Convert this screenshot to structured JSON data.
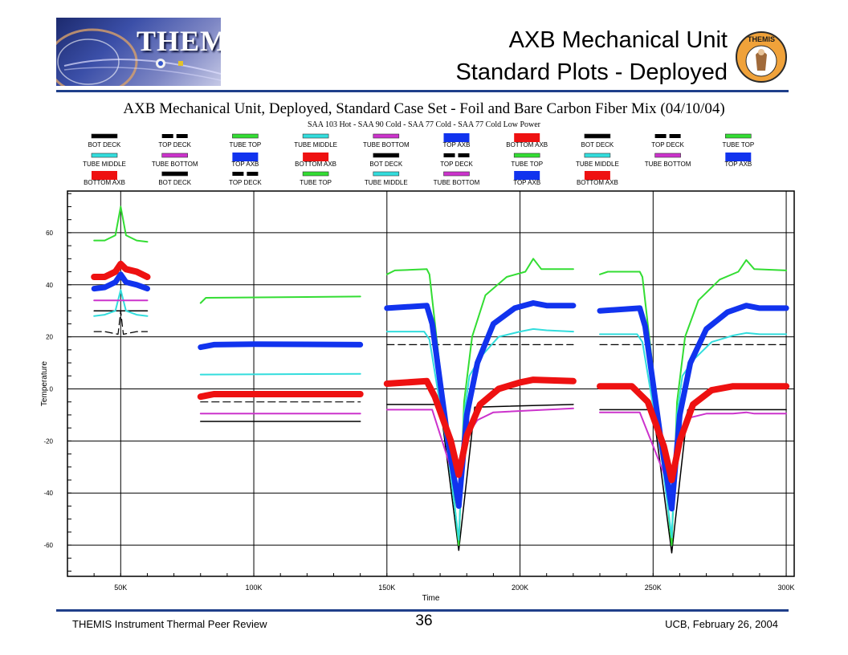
{
  "header": {
    "logo_text": "THEMIS",
    "title_line1": "AXB Mechanical Unit",
    "title_line2": "Standard Plots - Deployed",
    "emblem_text": "THEMIS"
  },
  "footer": {
    "left": "THEMIS Instrument Thermal Peer Review",
    "page": "36",
    "right": "UCB, February 26, 2004"
  },
  "colors": {
    "rule": "#1f3f8a",
    "BOT DECK": "#000000",
    "TOP DECK": "#000000",
    "TUBE TOP": "#33dd33",
    "TUBE MIDDLE": "#33dddd",
    "TUBE BOTTOM": "#cc33cc",
    "TOP AXB": "#1133ee",
    "BOTTOM AXB": "#ee1111"
  },
  "chart_data": {
    "type": "line",
    "title": "AXB Mechanical Unit, Deployed, Standard Case Set - Foil and Bare Carbon Fiber Mix  (04/10/04)",
    "subtitle": "SAA 103 Hot - SAA 90 Cold - SAA 77 Cold - SAA 77 Cold Low Power",
    "xlabel": "Time",
    "ylabel": "Temperature",
    "xlim": [
      30000,
      303000
    ],
    "ylim": [
      -72,
      76
    ],
    "xticks": [
      50000,
      100000,
      150000,
      200000,
      250000,
      300000
    ],
    "xtick_labels": [
      "50K",
      "100K",
      "150K",
      "200K",
      "250K",
      "300K"
    ],
    "yticks": [
      -60,
      -40,
      -20,
      0,
      20,
      40,
      60
    ],
    "ytick_labels": [
      "-60",
      "-40",
      "-20",
      "0",
      "20",
      "40",
      "60"
    ],
    "grid": true,
    "legend_rows": [
      [
        "BOT DECK",
        "TOP DECK",
        "TUBE TOP",
        "TUBE MIDDLE",
        "TUBE BOTTOM",
        "TOP AXB",
        "BOTTOM AXB",
        "BOT DECK",
        "TOP DECK",
        "TUBE TOP"
      ],
      [
        "TUBE MIDDLE",
        "TUBE BOTTOM",
        "TOP AXB",
        "BOTTOM AXB",
        "BOT DECK",
        "TOP DECK",
        "TUBE TOP",
        "TUBE MIDDLE",
        "TUBE BOTTOM",
        "TOP AXB"
      ],
      [
        "BOTTOM AXB",
        "BOT DECK",
        "TOP DECK",
        "TUBE TOP",
        "TUBE MIDDLE",
        "TUBE BOTTOM",
        "TOP AXB",
        "BOTTOM AXB"
      ]
    ],
    "series": [
      {
        "name": "BOT DECK",
        "width": 1.5,
        "dash": false,
        "points": [
          [
            40000,
            30
          ],
          [
            60000,
            30
          ],
          null,
          [
            80000,
            -12.5
          ],
          [
            140000,
            -12.5
          ],
          null,
          [
            150000,
            -6
          ],
          [
            170000,
            -6
          ],
          [
            177000,
            -62
          ],
          [
            183000,
            -7
          ],
          [
            220000,
            -6
          ],
          null,
          [
            230000,
            -8
          ],
          [
            250000,
            -8
          ],
          [
            257000,
            -63
          ],
          [
            263000,
            -8
          ],
          [
            300000,
            -8
          ]
        ]
      },
      {
        "name": "TOP DECK",
        "width": 1.2,
        "dash": true,
        "points": [
          [
            40000,
            22
          ],
          [
            44000,
            22
          ],
          [
            49000,
            21
          ],
          [
            50000,
            30
          ],
          [
            51000,
            21
          ],
          [
            56000,
            22
          ],
          [
            60000,
            22
          ],
          null,
          [
            80000,
            -5
          ],
          [
            140000,
            -5
          ],
          null,
          [
            150000,
            17
          ],
          [
            220000,
            17
          ],
          null,
          [
            230000,
            17
          ],
          [
            300000,
            17
          ]
        ]
      },
      {
        "name": "TUBE TOP",
        "width": 2,
        "dash": false,
        "points": [
          [
            40000,
            57
          ],
          [
            44000,
            57
          ],
          [
            48000,
            59
          ],
          [
            50000,
            70
          ],
          [
            52000,
            59
          ],
          [
            56000,
            57
          ],
          [
            60000,
            56.5
          ],
          null,
          [
            80000,
            33
          ],
          [
            82000,
            35
          ],
          [
            140000,
            35.5
          ],
          null,
          [
            150000,
            44
          ],
          [
            153000,
            45.5
          ],
          [
            165000,
            46
          ],
          [
            166000,
            44
          ],
          [
            173000,
            -20
          ],
          [
            177000,
            -60
          ],
          [
            179000,
            -5
          ],
          [
            182000,
            20
          ],
          [
            187000,
            36
          ],
          [
            195000,
            43
          ],
          [
            202000,
            45
          ],
          [
            205000,
            50
          ],
          [
            208000,
            46
          ],
          [
            220000,
            46
          ],
          null,
          [
            230000,
            44
          ],
          [
            233000,
            45
          ],
          [
            245000,
            45
          ],
          [
            246000,
            43
          ],
          [
            253000,
            -20
          ],
          [
            257000,
            -60
          ],
          [
            259000,
            -5
          ],
          [
            262000,
            20
          ],
          [
            267000,
            34
          ],
          [
            275000,
            42
          ],
          [
            282000,
            45
          ],
          [
            285000,
            49.5
          ],
          [
            288000,
            46
          ],
          [
            300000,
            45.5
          ]
        ]
      },
      {
        "name": "TUBE MIDDLE",
        "width": 2,
        "dash": false,
        "points": [
          [
            40000,
            28
          ],
          [
            44000,
            28.5
          ],
          [
            48000,
            30
          ],
          [
            50000,
            38
          ],
          [
            52000,
            30
          ],
          [
            56000,
            28.5
          ],
          [
            60000,
            28
          ],
          null,
          [
            80000,
            5.5
          ],
          [
            140000,
            5.8
          ],
          null,
          [
            150000,
            22
          ],
          [
            164000,
            22
          ],
          [
            166000,
            19
          ],
          [
            173000,
            -25
          ],
          [
            177000,
            -58
          ],
          [
            179000,
            -10
          ],
          [
            181000,
            5
          ],
          [
            185000,
            12
          ],
          [
            192000,
            20
          ],
          [
            200000,
            22
          ],
          [
            205000,
            23
          ],
          [
            210000,
            22.5
          ],
          [
            220000,
            22
          ],
          null,
          [
            230000,
            21
          ],
          [
            244000,
            21
          ],
          [
            246000,
            18
          ],
          [
            253000,
            -25
          ],
          [
            257000,
            -57
          ],
          [
            259000,
            -10
          ],
          [
            261000,
            5
          ],
          [
            265000,
            11
          ],
          [
            272000,
            18
          ],
          [
            280000,
            20.5
          ],
          [
            285000,
            21.5
          ],
          [
            290000,
            21
          ],
          [
            300000,
            21
          ]
        ]
      },
      {
        "name": "TUBE BOTTOM",
        "width": 2,
        "dash": false,
        "points": [
          [
            40000,
            34
          ],
          [
            60000,
            34
          ],
          null,
          [
            80000,
            -9.5
          ],
          [
            140000,
            -9.5
          ],
          null,
          [
            150000,
            -8
          ],
          [
            167000,
            -8
          ],
          [
            177000,
            -40
          ],
          [
            180000,
            -18
          ],
          [
            184000,
            -12
          ],
          [
            190000,
            -9
          ],
          [
            220000,
            -7.5
          ],
          null,
          [
            230000,
            -9
          ],
          [
            245000,
            -9
          ],
          [
            257000,
            -40
          ],
          [
            260000,
            -17
          ],
          [
            264000,
            -11
          ],
          [
            270000,
            -9.5
          ],
          [
            280000,
            -9.5
          ],
          [
            285000,
            -9
          ],
          [
            288000,
            -9.5
          ],
          [
            300000,
            -9.5
          ]
        ]
      },
      {
        "name": "TOP AXB",
        "width": 7,
        "dash": false,
        "points": [
          [
            40000,
            38.5
          ],
          [
            44000,
            39
          ],
          [
            48000,
            41
          ],
          [
            50000,
            44
          ],
          [
            52000,
            41
          ],
          [
            56000,
            40
          ],
          [
            60000,
            38.5
          ],
          null,
          [
            80000,
            16
          ],
          [
            85000,
            17
          ],
          [
            100000,
            17.2
          ],
          [
            140000,
            17
          ],
          null,
          [
            150000,
            31
          ],
          [
            165000,
            32
          ],
          [
            167000,
            25
          ],
          [
            173000,
            -20
          ],
          [
            177000,
            -45
          ],
          [
            180000,
            -10
          ],
          [
            184000,
            10
          ],
          [
            190000,
            25
          ],
          [
            198000,
            31
          ],
          [
            205000,
            33
          ],
          [
            210000,
            32
          ],
          [
            220000,
            32
          ],
          null,
          [
            230000,
            30
          ],
          [
            245000,
            31
          ],
          [
            247000,
            24
          ],
          [
            253000,
            -20
          ],
          [
            257000,
            -46
          ],
          [
            260000,
            -10
          ],
          [
            264000,
            10
          ],
          [
            270000,
            23
          ],
          [
            278000,
            29.5
          ],
          [
            285000,
            32
          ],
          [
            290000,
            31
          ],
          [
            300000,
            31
          ]
        ]
      },
      {
        "name": "BOTTOM AXB",
        "width": 8,
        "dash": false,
        "points": [
          [
            40000,
            43
          ],
          [
            44000,
            43
          ],
          [
            48000,
            45
          ],
          [
            50000,
            48
          ],
          [
            52000,
            46
          ],
          [
            56000,
            45
          ],
          [
            60000,
            43
          ],
          null,
          [
            80000,
            -3
          ],
          [
            85000,
            -2
          ],
          [
            140000,
            -2
          ],
          null,
          [
            150000,
            2
          ],
          [
            165000,
            3
          ],
          [
            168000,
            -3
          ],
          [
            174000,
            -20
          ],
          [
            177000,
            -33
          ],
          [
            180000,
            -18
          ],
          [
            185000,
            -6
          ],
          [
            192000,
            0
          ],
          [
            200000,
            2.5
          ],
          [
            205000,
            3.5
          ],
          [
            220000,
            3
          ],
          null,
          [
            230000,
            1
          ],
          [
            242000,
            1
          ],
          [
            248000,
            -5
          ],
          [
            254000,
            -22
          ],
          [
            257000,
            -35
          ],
          [
            260000,
            -20
          ],
          [
            265000,
            -6
          ],
          [
            272000,
            -0.5
          ],
          [
            280000,
            1
          ],
          [
            300000,
            1
          ]
        ]
      }
    ]
  }
}
